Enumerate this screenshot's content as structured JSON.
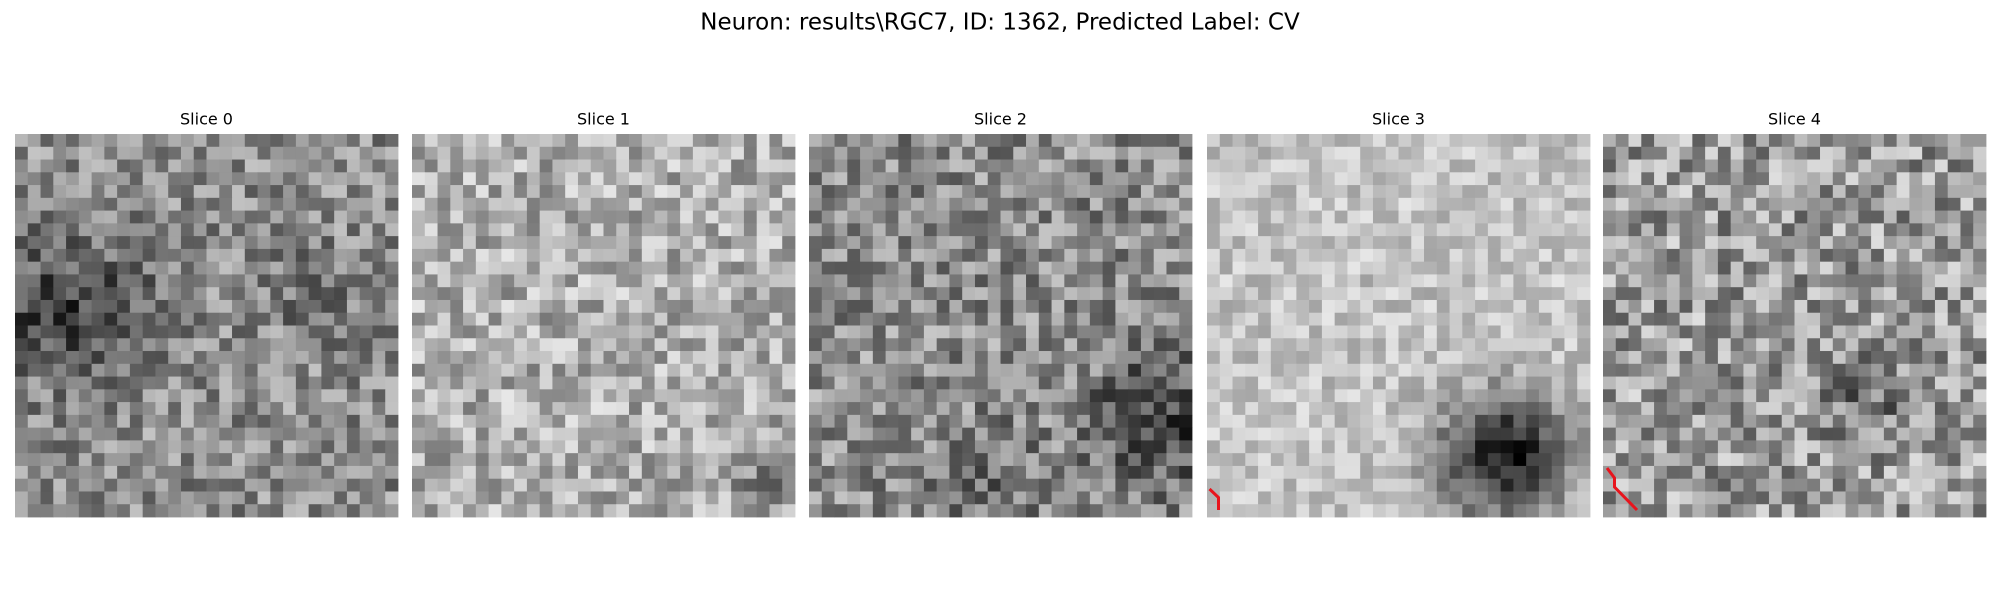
{
  "title": "Neuron: results\\RGC7, ID: 1362, Predicted Label: CV",
  "panels": [
    {
      "title": "Slice 0"
    },
    {
      "title": "Slice 1"
    },
    {
      "title": "Slice 2"
    },
    {
      "title": "Slice 3"
    },
    {
      "title": "Slice 4"
    }
  ]
}
